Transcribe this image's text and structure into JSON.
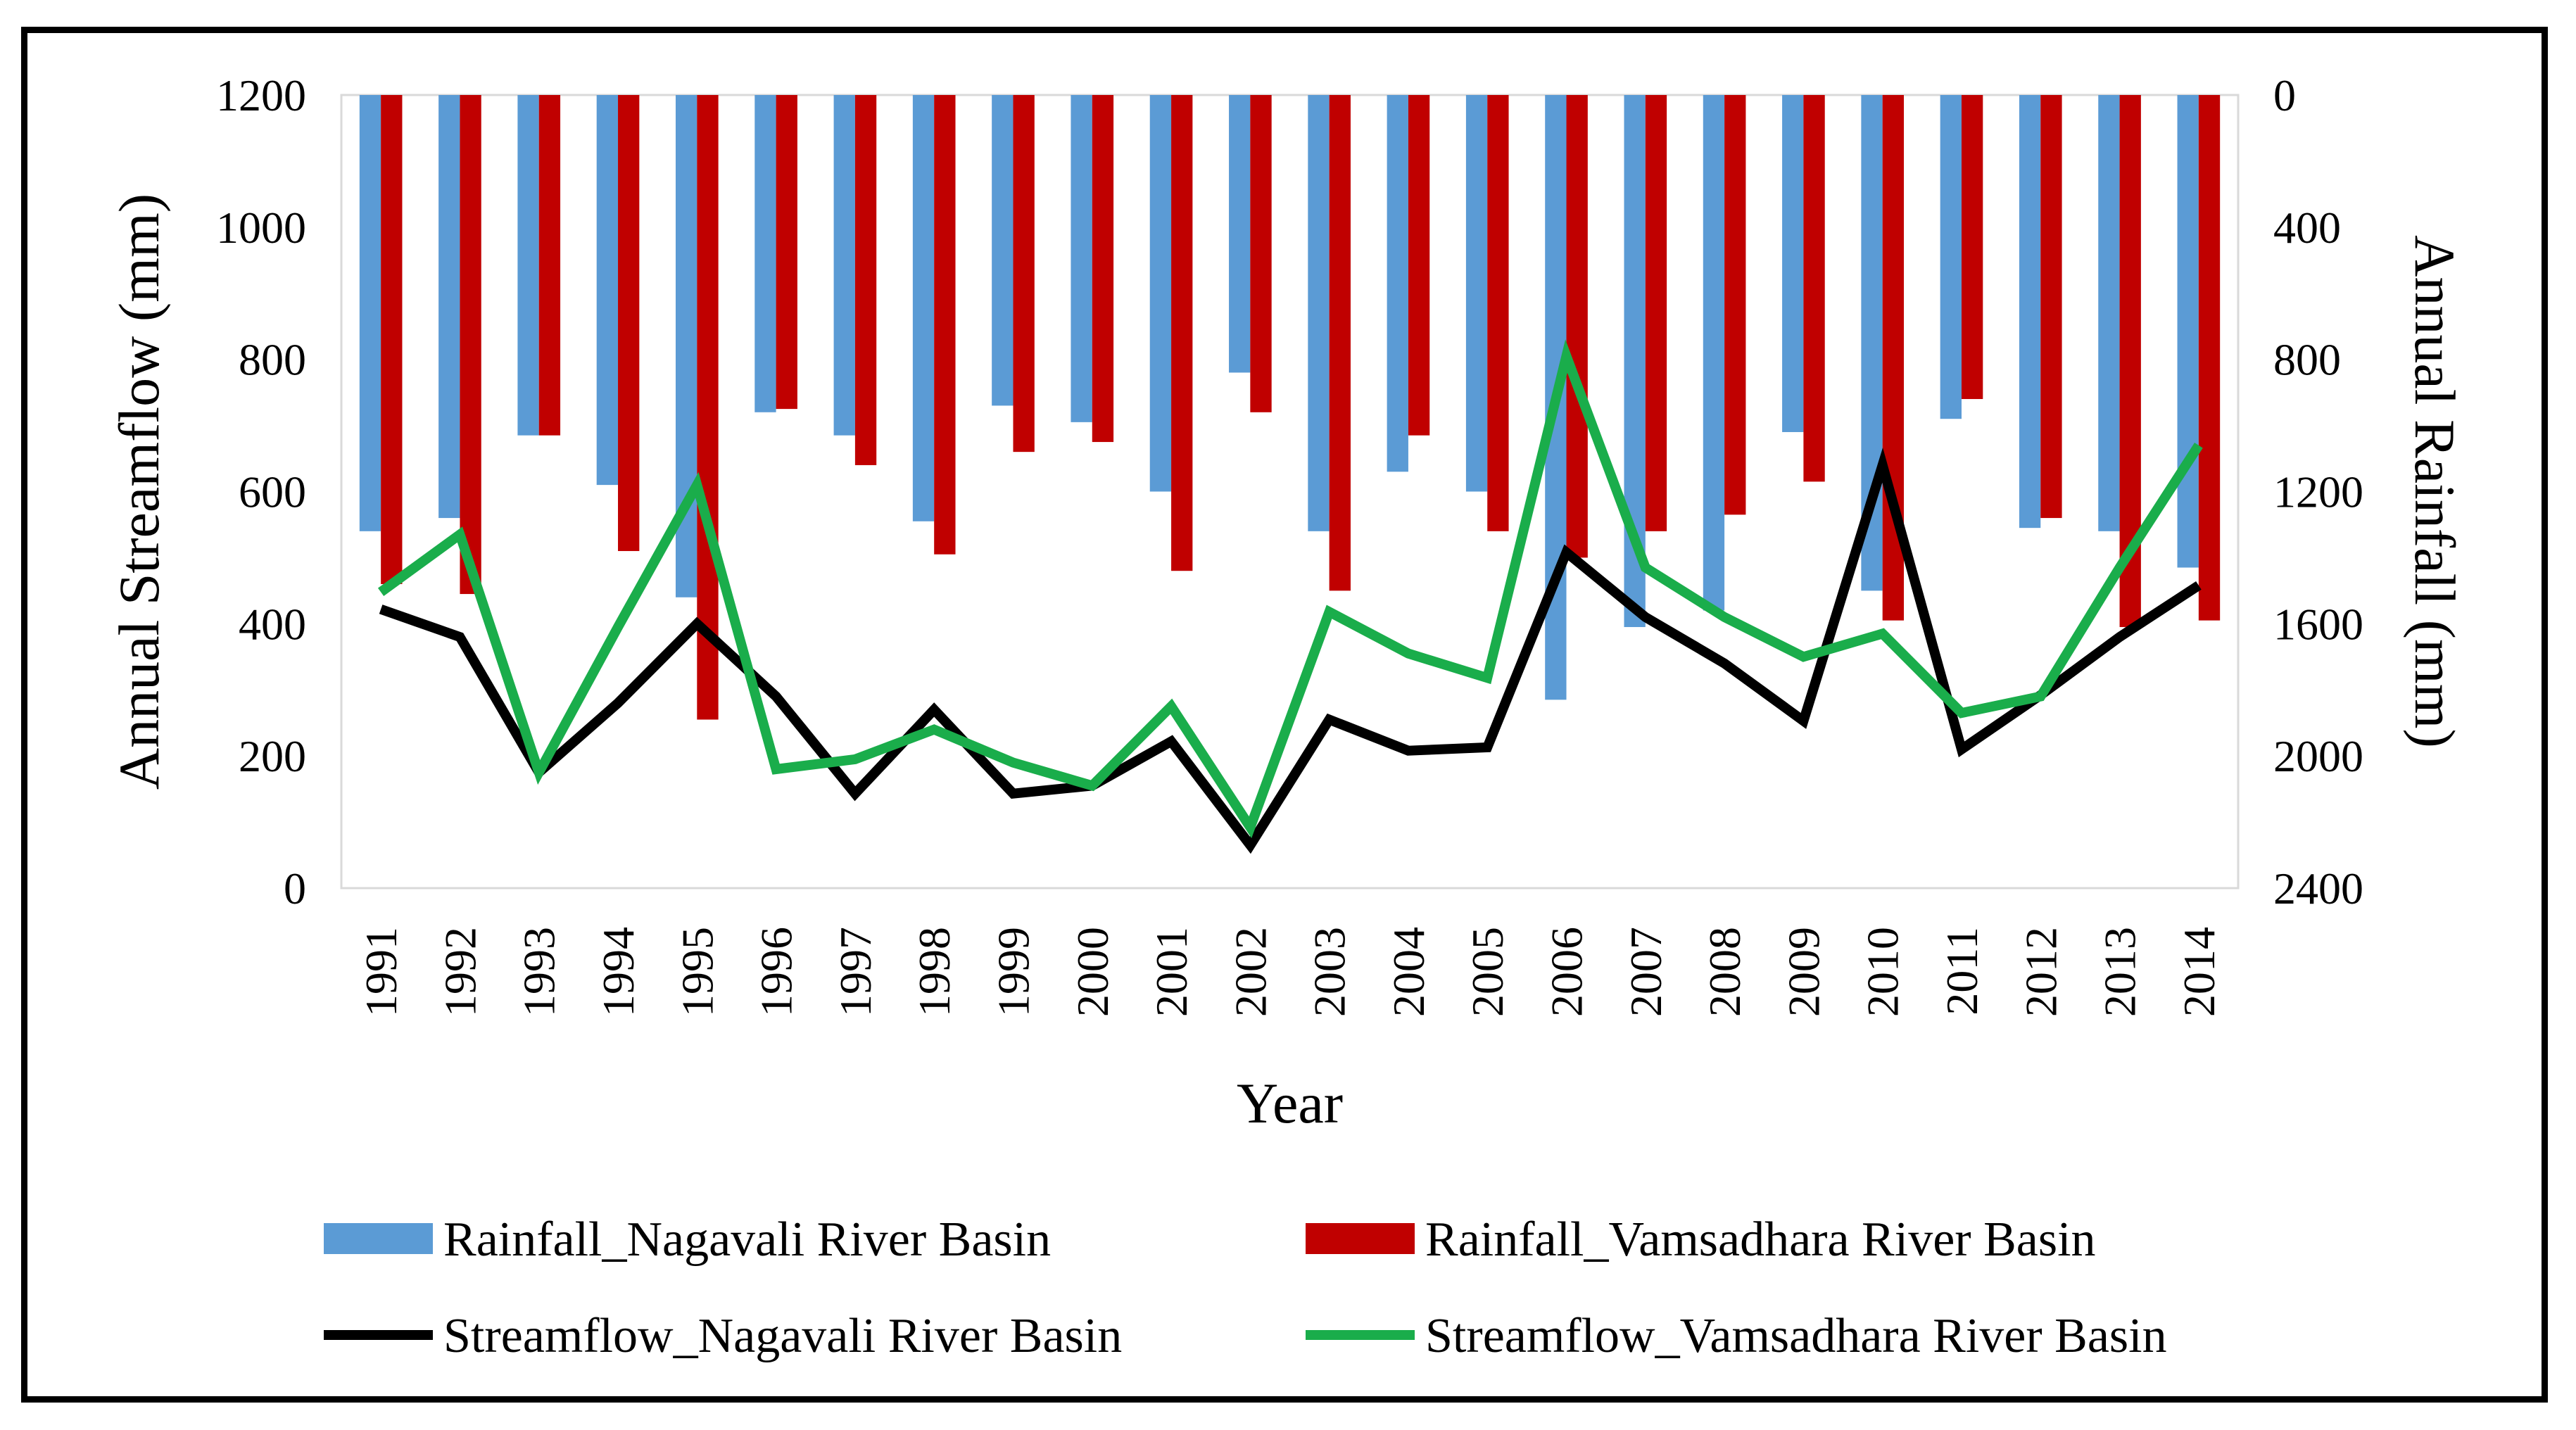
{
  "chart_data": {
    "type": "bar+line",
    "title": "",
    "xlabel": "Year",
    "ylabel_left": "Annual Streamflow (mm)",
    "ylabel_right": "Annual Rainfall (mm)",
    "ylim_left": [
      0,
      1200
    ],
    "yticks_left": [
      "0",
      "200",
      "400",
      "600",
      "800",
      "1000",
      "1200"
    ],
    "ylim_right": [
      0,
      2400
    ],
    "right_axis_inverted": true,
    "yticks_right": [
      "0",
      "400",
      "800",
      "1200",
      "1600",
      "2000",
      "2400"
    ],
    "legend_position": "bottom",
    "categories": [
      "1991",
      "1992",
      "1993",
      "1994",
      "1995",
      "1996",
      "1997",
      "1998",
      "1999",
      "2000",
      "2001",
      "2002",
      "2003",
      "2004",
      "2005",
      "2006",
      "2007",
      "2008",
      "2009",
      "2010",
      "2011",
      "2012",
      "2013",
      "2014"
    ],
    "bar_series": [
      {
        "name": "Rainfall_Nagavali River Basin",
        "color": "#5b9bd5",
        "axis": "right",
        "values": [
          1320,
          1280,
          1030,
          1180,
          1520,
          960,
          1030,
          1290,
          940,
          990,
          1200,
          840,
          1320,
          1140,
          1200,
          1830,
          1610,
          1560,
          1020,
          1500,
          980,
          1310,
          1320,
          1430
        ]
      },
      {
        "name": "Rainfall_Vamsadhara River Basin",
        "color": "#c00000",
        "axis": "right",
        "values": [
          1480,
          1510,
          1030,
          1380,
          1890,
          950,
          1120,
          1390,
          1080,
          1050,
          1440,
          960,
          1500,
          1030,
          1320,
          1400,
          1320,
          1270,
          1170,
          1590,
          920,
          1280,
          1610,
          1590
        ]
      }
    ],
    "line_series": [
      {
        "name": "Streamflow_Nagavali River Basin",
        "color": "#000000",
        "axis": "left",
        "values": [
          422,
          380,
          175,
          280,
          400,
          290,
          143,
          270,
          143,
          155,
          222,
          65,
          255,
          208,
          213,
          508,
          410,
          340,
          253,
          640,
          210,
          292,
          380,
          458
        ]
      },
      {
        "name": "Streamflow_Vamsadhara River Basin",
        "color": "#1aad4b",
        "axis": "left",
        "values": [
          448,
          535,
          175,
          395,
          610,
          180,
          195,
          240,
          190,
          155,
          275,
          92,
          418,
          355,
          318,
          805,
          485,
          410,
          350,
          385,
          265,
          290,
          485,
          670
        ]
      }
    ]
  }
}
